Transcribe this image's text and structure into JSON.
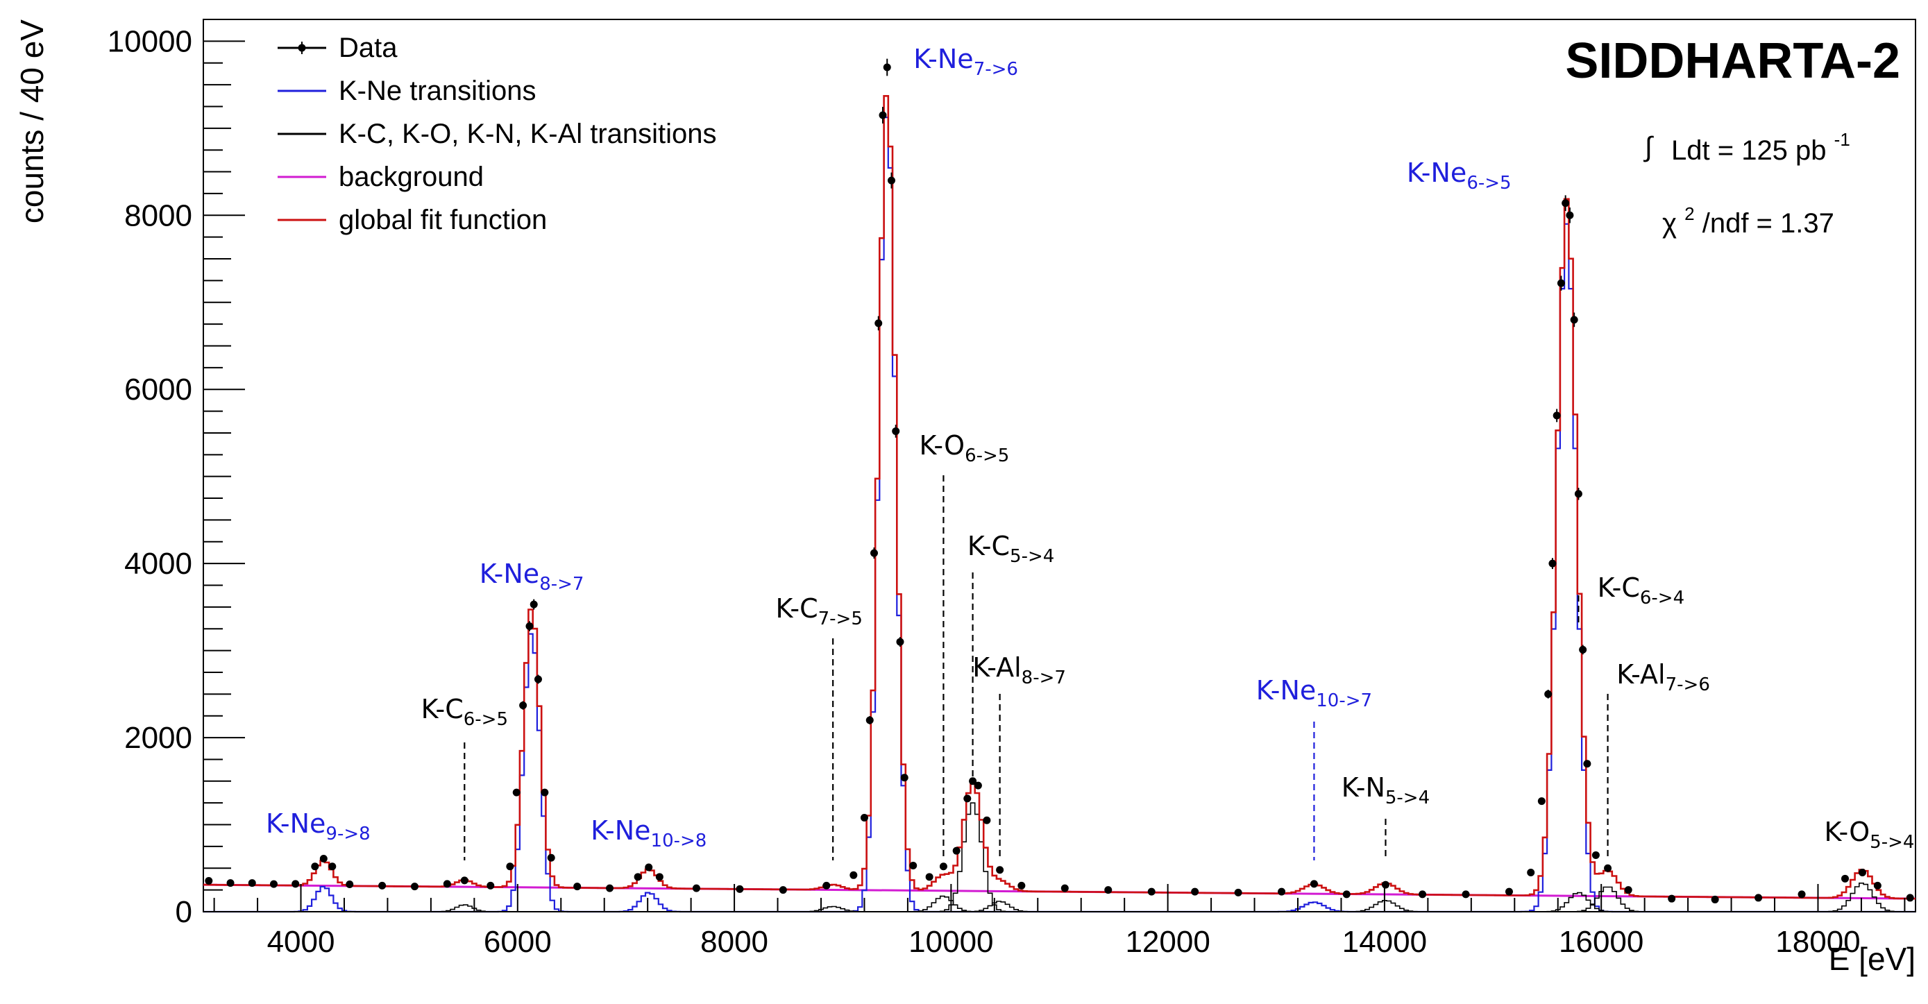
{
  "chart_data": {
    "type": "line",
    "title": "",
    "xlabel": "E [eV]",
    "ylabel": "counts / 40 eV",
    "xlim": [
      3100,
      18900
    ],
    "ylim": [
      0,
      10250
    ],
    "x_ticks": [
      4000,
      6000,
      8000,
      10000,
      12000,
      14000,
      16000,
      18000
    ],
    "y_ticks": [
      0,
      2000,
      4000,
      6000,
      8000,
      10000
    ],
    "x_tick_labels": [
      "4000",
      "6000",
      "8000",
      "10000",
      "12000",
      "14000",
      "16000",
      "18000"
    ],
    "y_tick_labels": [
      "0",
      "2000",
      "4000",
      "6000",
      "8000",
      "10000"
    ],
    "bin_width_eV": 40,
    "grid": false,
    "legend_position": "top-left",
    "legend": [
      {
        "key": "data",
        "label": "Data",
        "color": "#000000"
      },
      {
        "key": "kne",
        "label": "K-Ne transitions",
        "color": "#1f1fdc"
      },
      {
        "key": "other",
        "label": "K-C, K-O, K-N, K-Al transitions",
        "color": "#000000"
      },
      {
        "key": "background",
        "label": "background",
        "color": "#d21bd2"
      },
      {
        "key": "fit",
        "label": "global fit function",
        "color": "#cc1111"
      }
    ],
    "background": {
      "start": [
        3100,
        310
      ],
      "end": [
        18900,
        150
      ]
    },
    "peaks": [
      {
        "group": "kne",
        "label": "K-Ne",
        "sub": "9->8",
        "energy": 4210,
        "amplitude": 290,
        "sigma": 75
      },
      {
        "group": "other",
        "label": "K-C",
        "sub": "6->5",
        "energy": 5510,
        "amplitude": 80,
        "sigma": 75
      },
      {
        "group": "kne",
        "label": "K-Ne",
        "sub": "8->7",
        "energy": 6130,
        "amplitude": 3220,
        "sigma": 75
      },
      {
        "group": "kne",
        "label": "K-Ne",
        "sub": "10->8",
        "energy": 7210,
        "amplitude": 220,
        "sigma": 80
      },
      {
        "group": "other",
        "label": "K-C",
        "sub": "7->5",
        "energy": 8910,
        "amplitude": 60,
        "sigma": 85
      },
      {
        "group": "kne",
        "label": "K-Ne",
        "sub": "7->6",
        "energy": 9410,
        "amplitude": 9200,
        "sigma": 78
      },
      {
        "group": "other",
        "label": "K-O",
        "sub": "6->5",
        "energy": 9930,
        "amplitude": 180,
        "sigma": 85
      },
      {
        "group": "other",
        "label": "K-C",
        "sub": "5->4",
        "energy": 10200,
        "amplitude": 1250,
        "sigma": 85
      },
      {
        "group": "other",
        "label": "K-Al",
        "sub": "8->7",
        "energy": 10450,
        "amplitude": 120,
        "sigma": 85
      },
      {
        "group": "kne",
        "label": "K-Ne",
        "sub": "10->7",
        "energy": 13350,
        "amplitude": 110,
        "sigma": 95
      },
      {
        "group": "other",
        "label": "K-N",
        "sub": "5->4",
        "energy": 14010,
        "amplitude": 130,
        "sigma": 95
      },
      {
        "group": "kne",
        "label": "K-Ne",
        "sub": "6->5",
        "energy": 15680,
        "amplitude": 7900,
        "sigma": 90
      },
      {
        "group": "other",
        "label": "K-C",
        "sub": "6->4",
        "energy": 15790,
        "amplitude": 220,
        "sigma": 90
      },
      {
        "group": "other",
        "label": "K-Al",
        "sub": "7->6",
        "energy": 16060,
        "amplitude": 290,
        "sigma": 90
      },
      {
        "group": "other",
        "label": "K-O",
        "sub": "5->4",
        "energy": 18410,
        "amplitude": 330,
        "sigma": 95
      }
    ],
    "data_points": [
      {
        "x": 3150,
        "y": 355
      },
      {
        "x": 3350,
        "y": 330
      },
      {
        "x": 3550,
        "y": 330
      },
      {
        "x": 3750,
        "y": 318
      },
      {
        "x": 3950,
        "y": 320
      },
      {
        "x": 4130,
        "y": 520
      },
      {
        "x": 4210,
        "y": 610
      },
      {
        "x": 4290,
        "y": 520
      },
      {
        "x": 4450,
        "y": 315
      },
      {
        "x": 4750,
        "y": 300
      },
      {
        "x": 5050,
        "y": 290
      },
      {
        "x": 5350,
        "y": 320
      },
      {
        "x": 5510,
        "y": 360
      },
      {
        "x": 5750,
        "y": 300
      },
      {
        "x": 5930,
        "y": 520
      },
      {
        "x": 5990,
        "y": 1370
      },
      {
        "x": 6050,
        "y": 2370
      },
      {
        "x": 6110,
        "y": 3280
      },
      {
        "x": 6150,
        "y": 3530
      },
      {
        "x": 6190,
        "y": 2670
      },
      {
        "x": 6250,
        "y": 1370
      },
      {
        "x": 6310,
        "y": 620
      },
      {
        "x": 6550,
        "y": 290
      },
      {
        "x": 6850,
        "y": 270
      },
      {
        "x": 7110,
        "y": 400
      },
      {
        "x": 7210,
        "y": 510
      },
      {
        "x": 7310,
        "y": 400
      },
      {
        "x": 7650,
        "y": 270
      },
      {
        "x": 8050,
        "y": 260
      },
      {
        "x": 8450,
        "y": 250
      },
      {
        "x": 8850,
        "y": 300
      },
      {
        "x": 9100,
        "y": 420
      },
      {
        "x": 9200,
        "y": 1080
      },
      {
        "x": 9250,
        "y": 2200
      },
      {
        "x": 9290,
        "y": 4120
      },
      {
        "x": 9330,
        "y": 6760
      },
      {
        "x": 9370,
        "y": 9150
      },
      {
        "x": 9410,
        "y": 9700
      },
      {
        "x": 9450,
        "y": 8400
      },
      {
        "x": 9490,
        "y": 5520
      },
      {
        "x": 9530,
        "y": 3100
      },
      {
        "x": 9570,
        "y": 1540
      },
      {
        "x": 9650,
        "y": 530
      },
      {
        "x": 9800,
        "y": 400
      },
      {
        "x": 9930,
        "y": 520
      },
      {
        "x": 10050,
        "y": 700
      },
      {
        "x": 10150,
        "y": 1300
      },
      {
        "x": 10200,
        "y": 1500
      },
      {
        "x": 10250,
        "y": 1450
      },
      {
        "x": 10330,
        "y": 1050
      },
      {
        "x": 10450,
        "y": 480
      },
      {
        "x": 10650,
        "y": 300
      },
      {
        "x": 11050,
        "y": 270
      },
      {
        "x": 11450,
        "y": 250
      },
      {
        "x": 11850,
        "y": 230
      },
      {
        "x": 12250,
        "y": 230
      },
      {
        "x": 12650,
        "y": 220
      },
      {
        "x": 13050,
        "y": 230
      },
      {
        "x": 13350,
        "y": 320
      },
      {
        "x": 13650,
        "y": 200
      },
      {
        "x": 14010,
        "y": 310
      },
      {
        "x": 14350,
        "y": 200
      },
      {
        "x": 14750,
        "y": 200
      },
      {
        "x": 15150,
        "y": 230
      },
      {
        "x": 15350,
        "y": 450
      },
      {
        "x": 15450,
        "y": 1270
      },
      {
        "x": 15510,
        "y": 2500
      },
      {
        "x": 15550,
        "y": 4000
      },
      {
        "x": 15590,
        "y": 5700
      },
      {
        "x": 15630,
        "y": 7220
      },
      {
        "x": 15670,
        "y": 8140
      },
      {
        "x": 15710,
        "y": 8000
      },
      {
        "x": 15750,
        "y": 6800
      },
      {
        "x": 15790,
        "y": 4800
      },
      {
        "x": 15830,
        "y": 3010
      },
      {
        "x": 15870,
        "y": 1700
      },
      {
        "x": 15950,
        "y": 650
      },
      {
        "x": 16060,
        "y": 500
      },
      {
        "x": 16250,
        "y": 250
      },
      {
        "x": 16650,
        "y": 150
      },
      {
        "x": 17050,
        "y": 140
      },
      {
        "x": 17450,
        "y": 160
      },
      {
        "x": 17850,
        "y": 200
      },
      {
        "x": 18250,
        "y": 380
      },
      {
        "x": 18410,
        "y": 450
      },
      {
        "x": 18550,
        "y": 300
      },
      {
        "x": 18850,
        "y": 160
      }
    ],
    "annotations": {
      "experiment": "SIDDHARTA-2",
      "luminosity": {
        "integral": "∫",
        "text": "Ldt = 125 pb",
        "sup": "-1"
      },
      "chi2": {
        "symbol": "χ",
        "sup": "2",
        "text": "/ndf = 1.37"
      }
    },
    "label_colors": {
      "kne": "#1f1fdc",
      "other": "#000000"
    }
  }
}
